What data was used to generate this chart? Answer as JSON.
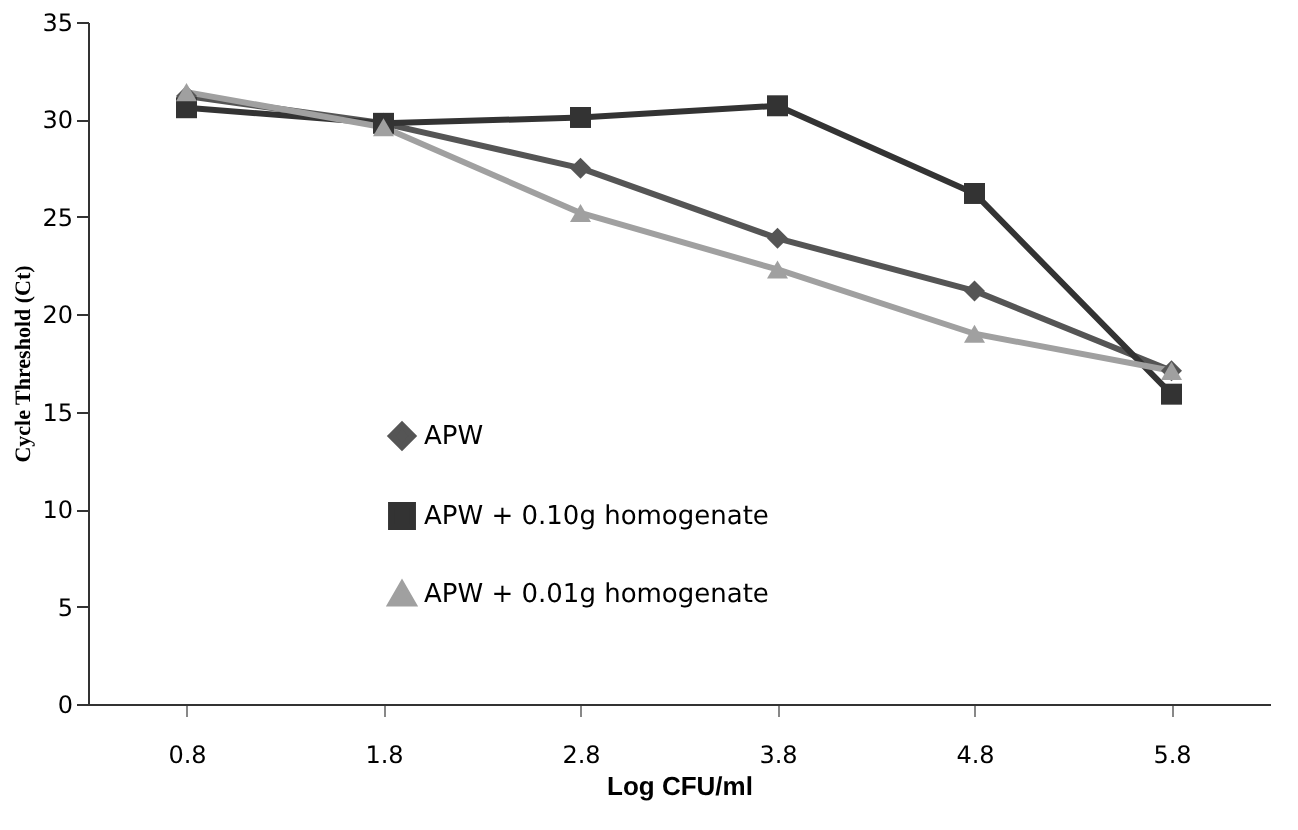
{
  "chart_data": {
    "type": "line",
    "xlabel": "Log CFU/ml",
    "ylabel": "Cycle Threshold (Ct)",
    "categories": [
      "0.8",
      "1.8",
      "2.8",
      "3.8",
      "4.8",
      "5.8"
    ],
    "series": [
      {
        "name": "APW",
        "color": "#555555",
        "marker": "diamond",
        "values": [
          31.2,
          29.8,
          27.5,
          23.9,
          21.2,
          17.1
        ]
      },
      {
        "name": "APW + 0.10g homogenate",
        "color": "#333333",
        "marker": "square",
        "values": [
          30.6,
          29.8,
          30.1,
          30.7,
          26.2,
          15.9
        ]
      },
      {
        "name": "APW + 0.01g homogenate",
        "color": "#a0a0a0",
        "marker": "triangle",
        "values": [
          31.4,
          29.6,
          25.2,
          22.3,
          19.0,
          17.1
        ]
      }
    ],
    "ylim": [
      0,
      35
    ],
    "yticks": [
      0,
      5,
      10,
      15,
      20,
      25,
      30,
      35
    ],
    "grid": false,
    "legend": "left",
    "line_style": "solid"
  }
}
